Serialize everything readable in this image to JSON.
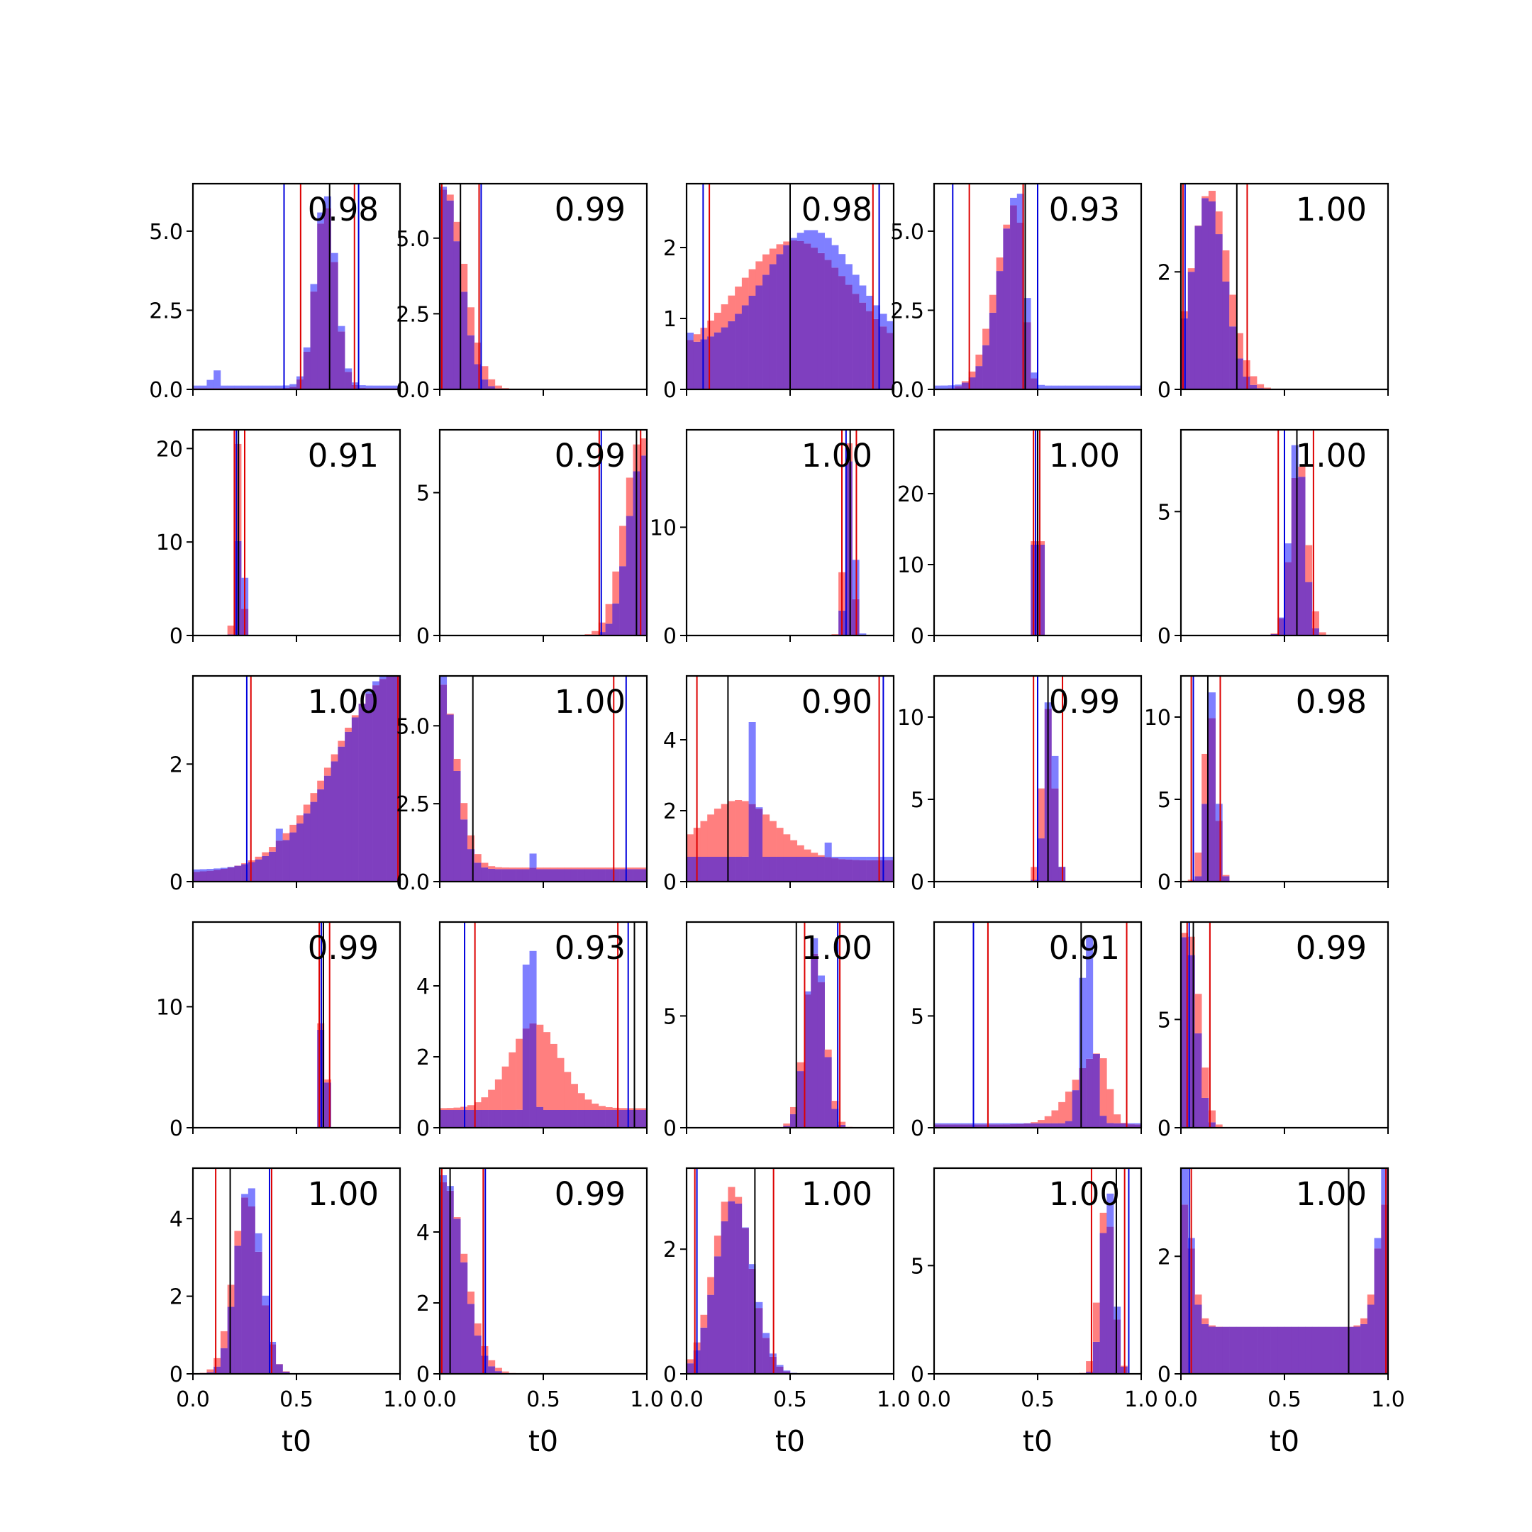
{
  "chart_data": {
    "type": "histogram-grid",
    "rows": 5,
    "cols": 5,
    "xlabel": "t0",
    "xlim": [
      0,
      1
    ],
    "xticks": [
      0.0,
      0.5,
      1.0
    ],
    "xtick_labels": [
      "0.0",
      "0.5",
      "1.0"
    ],
    "colors": {
      "red": "#ff7f7f",
      "blue": "#7f7fff",
      "overlap": "#7f3fbf",
      "red_line": "#dd0000",
      "blue_line": "#0000dd",
      "black_line": "#000000"
    },
    "panels": [
      {
        "score": "0.98",
        "ylim": [
          0,
          6.5
        ],
        "yticks": [
          0,
          2.5,
          5
        ],
        "ytick_labels": [
          "0.0",
          "2.5",
          "5.0"
        ],
        "red": {
          "type": "peak",
          "mu": 0.64,
          "sigma": 0.05,
          "base": 0.04,
          "peak": 5.8
        },
        "blue": {
          "type": "peak",
          "mu": 0.64,
          "sigma": 0.05,
          "base": 0.12,
          "peak": 6.1,
          "spikes": [
            [
              0.08,
              0.3
            ],
            [
              0.12,
              0.6
            ]
          ]
        },
        "vlines": {
          "red": [
            0.52,
            0.78
          ],
          "blue": [
            0.44,
            0.8
          ],
          "black": [
            0.66
          ]
        }
      },
      {
        "score": "0.99",
        "ylim": [
          0,
          6.8
        ],
        "yticks": [
          0,
          2.5,
          5
        ],
        "ytick_labels": [
          "0.0",
          "2.5",
          "5.0"
        ],
        "red": {
          "type": "decay",
          "mu": 0.03,
          "sigma": 0.09,
          "base": 0.0,
          "peak": 6.6
        },
        "blue": {
          "type": "decay",
          "mu": 0.02,
          "sigma": 0.08,
          "base": 0.0,
          "peak": 6.7
        },
        "vlines": {
          "red": [
            0.01,
            0.19
          ],
          "blue": [
            0.2
          ],
          "black": [
            0.1
          ]
        }
      },
      {
        "score": "0.98",
        "ylim": [
          0,
          2.9
        ],
        "yticks": [
          0,
          1,
          2
        ],
        "ytick_labels": [
          "0",
          "1",
          "2"
        ],
        "red": {
          "type": "peak",
          "mu": 0.52,
          "sigma": 0.28,
          "base": 0.35,
          "peak": 1.75
        },
        "blue": {
          "type": "peak",
          "mu": 0.6,
          "sigma": 0.22,
          "base": 0.6,
          "peak": 1.65,
          "spikes": [
            [
              0.03,
              0.8
            ],
            [
              0.97,
              0.85
            ]
          ]
        },
        "vlines": {
          "red": [
            0.11,
            0.9
          ],
          "blue": [
            0.08,
            0.93
          ],
          "black": [
            0.5
          ]
        }
      },
      {
        "score": "0.93",
        "ylim": [
          0,
          6.5
        ],
        "yticks": [
          0,
          2.5,
          5
        ],
        "ytick_labels": [
          "0.0",
          "2.5",
          "5.0"
        ],
        "red": {
          "type": "skewleft",
          "mu": 0.4,
          "sigma": 0.1,
          "base": 0.0,
          "peak": 5.9
        },
        "blue": {
          "type": "skewleft",
          "mu": 0.41,
          "sigma": 0.09,
          "base": 0.12,
          "peak": 6.2
        },
        "vlines": {
          "red": [
            0.17,
            0.43
          ],
          "blue": [
            0.09,
            0.5
          ],
          "black": [
            0.44
          ]
        }
      },
      {
        "score": "1.00",
        "ylim": [
          0,
          3.5
        ],
        "yticks": [
          0,
          2
        ],
        "ytick_labels": [
          "0",
          "2"
        ],
        "red": {
          "type": "peak",
          "mu": 0.14,
          "sigma": 0.09,
          "base": 0.0,
          "peak": 3.4
        },
        "blue": {
          "type": "peak",
          "mu": 0.13,
          "sigma": 0.08,
          "base": 0.0,
          "peak": 3.3
        },
        "vlines": {
          "red": [
            0.01,
            0.32
          ],
          "blue": [
            0.02
          ],
          "black": [
            0.27
          ]
        }
      },
      {
        "score": "0.91",
        "ylim": [
          0,
          22
        ],
        "yticks": [
          0,
          10,
          20
        ],
        "ytick_labels": [
          "0",
          "10",
          "20"
        ],
        "red": {
          "type": "peak",
          "mu": 0.22,
          "sigma": 0.015,
          "base": 0.0,
          "peak": 21
        },
        "blue": {
          "type": "peak",
          "mu": 0.23,
          "sigma": 0.015,
          "base": 0.0,
          "peak": 15
        },
        "vlines": {
          "red": [
            0.2,
            0.25
          ],
          "blue": [
            0.21
          ],
          "black": [
            0.22
          ]
        }
      },
      {
        "score": "0.99",
        "ylim": [
          0,
          7.2
        ],
        "yticks": [
          0,
          5
        ],
        "ytick_labels": [
          "0",
          "5"
        ],
        "red": {
          "type": "growth",
          "mu": 0.97,
          "sigma": 0.08,
          "base": 0.0,
          "peak": 6.9
        },
        "blue": {
          "type": "growth",
          "mu": 0.98,
          "sigma": 0.07,
          "base": 0.0,
          "peak": 6.3
        },
        "vlines": {
          "red": [
            0.77,
            0.97
          ],
          "blue": [
            0.78
          ],
          "black": [
            0.95
          ]
        }
      },
      {
        "score": "1.00",
        "ylim": [
          0,
          19
        ],
        "yticks": [
          0,
          10
        ],
        "ytick_labels": [
          "0",
          "10"
        ],
        "red": {
          "type": "peak",
          "mu": 0.78,
          "sigma": 0.02,
          "base": 0.0,
          "peak": 18
        },
        "blue": {
          "type": "peak",
          "mu": 0.79,
          "sigma": 0.02,
          "base": 0.0,
          "peak": 17
        },
        "vlines": {
          "red": [
            0.75,
            0.82
          ],
          "blue": [
            0.77
          ],
          "black": [
            0.79
          ]
        }
      },
      {
        "score": "1.00",
        "ylim": [
          0,
          29
        ],
        "yticks": [
          0,
          10,
          20
        ],
        "ytick_labels": [
          "0",
          "10",
          "20"
        ],
        "red": {
          "type": "peak",
          "mu": 0.5,
          "sigma": 0.014,
          "base": 0.0,
          "peak": 27
        },
        "blue": {
          "type": "peak",
          "mu": 0.5,
          "sigma": 0.014,
          "base": 0.0,
          "peak": 26
        },
        "vlines": {
          "red": [
            0.48,
            0.51
          ],
          "blue": [
            0.49
          ],
          "black": [
            0.5
          ]
        }
      },
      {
        "score": "1.00",
        "ylim": [
          0,
          8.3
        ],
        "yticks": [
          0,
          5
        ],
        "ytick_labels": [
          "0",
          "5"
        ],
        "red": {
          "type": "peak",
          "mu": 0.57,
          "sigma": 0.04,
          "base": 0.0,
          "peak": 7.2
        },
        "blue": {
          "type": "peak",
          "mu": 0.56,
          "sigma": 0.035,
          "base": 0.0,
          "peak": 8.0
        },
        "vlines": {
          "red": [
            0.47,
            0.64
          ],
          "blue": [
            0.5
          ],
          "black": [
            0.56
          ]
        }
      },
      {
        "score": "1.00",
        "ylim": [
          0,
          3.5
        ],
        "yticks": [
          0,
          2
        ],
        "ytick_labels": [
          "0",
          "2"
        ],
        "red": {
          "type": "growth",
          "mu": 0.99,
          "sigma": 0.3,
          "base": 0.15,
          "peak": 3.4
        },
        "blue": {
          "type": "growth",
          "mu": 1.0,
          "sigma": 0.28,
          "base": 0.2,
          "peak": 3.5,
          "spikes": [
            [
              0.41,
              0.9
            ]
          ]
        },
        "vlines": {
          "red": [
            0.28,
            0.99
          ],
          "blue": [
            0.26
          ],
          "black": []
        }
      },
      {
        "score": "1.00",
        "ylim": [
          0,
          6.6
        ],
        "yticks": [
          0,
          2.5,
          5
        ],
        "ytick_labels": [
          "0.0",
          "2.5",
          "5.0"
        ],
        "red": {
          "type": "decay",
          "mu": 0.0,
          "sigma": 0.08,
          "base": 0.45,
          "peak": 6.0
        },
        "blue": {
          "type": "decay",
          "mu": 0.0,
          "sigma": 0.07,
          "base": 0.4,
          "peak": 6.4,
          "spikes": [
            [
              0.46,
              0.9
            ]
          ]
        },
        "vlines": {
          "red": [
            0.84
          ],
          "blue": [
            0.9
          ],
          "black": [
            0.16
          ]
        }
      },
      {
        "score": "0.90",
        "ylim": [
          0,
          5.8
        ],
        "yticks": [
          0,
          2,
          4
        ],
        "ytick_labels": [
          "0",
          "2",
          "4"
        ],
        "red": {
          "type": "peak",
          "mu": 0.25,
          "sigma": 0.18,
          "base": 0.6,
          "peak": 1.7
        },
        "blue": {
          "type": "peak",
          "mu": 0.33,
          "sigma": 0.012,
          "base": 0.7,
          "peak": 5.6,
          "spikes": [
            [
              0.31,
              4.5
            ],
            [
              0.35,
              1.6
            ],
            [
              0.68,
              1.1
            ]
          ]
        },
        "vlines": {
          "red": [
            0.05,
            0.93
          ],
          "blue": [
            0.95
          ],
          "black": [
            0.2
          ]
        }
      },
      {
        "score": "0.99",
        "ylim": [
          0,
          12.5
        ],
        "yticks": [
          0,
          5,
          10
        ],
        "ytick_labels": [
          "0",
          "5",
          "10"
        ],
        "red": {
          "type": "peak",
          "mu": 0.55,
          "sigma": 0.03,
          "base": 0.0,
          "peak": 10.5
        },
        "blue": {
          "type": "peak",
          "mu": 0.56,
          "sigma": 0.025,
          "base": 0.0,
          "peak": 11.8
        },
        "vlines": {
          "red": [
            0.48,
            0.62
          ],
          "blue": [
            0.5
          ],
          "black": [
            0.55
          ]
        }
      },
      {
        "score": "0.98",
        "ylim": [
          0,
          12.5
        ],
        "yticks": [
          0,
          5,
          10
        ],
        "ytick_labels": [
          "0",
          "5",
          "10"
        ],
        "red": {
          "type": "peak",
          "mu": 0.14,
          "sigma": 0.03,
          "base": 0.0,
          "peak": 10.5
        },
        "blue": {
          "type": "peak",
          "mu": 0.15,
          "sigma": 0.025,
          "base": 0.0,
          "peak": 11.5
        },
        "vlines": {
          "red": [
            0.05,
            0.19
          ],
          "blue": [
            0.06
          ],
          "black": [
            0.13
          ]
        }
      },
      {
        "score": "0.99",
        "ylim": [
          0,
          17
        ],
        "yticks": [
          0,
          10
        ],
        "ytick_labels": [
          "0",
          "10"
        ],
        "red": {
          "type": "peak",
          "mu": 0.63,
          "sigma": 0.012,
          "base": 0.0,
          "peak": 16
        },
        "blue": {
          "type": "peak",
          "mu": 0.63,
          "sigma": 0.012,
          "base": 0.0,
          "peak": 15
        },
        "vlines": {
          "red": [
            0.61,
            0.66
          ],
          "blue": [
            0.62
          ],
          "black": [
            0.63
          ]
        }
      },
      {
        "score": "0.93",
        "ylim": [
          0,
          5.8
        ],
        "yticks": [
          0,
          2,
          4
        ],
        "ytick_labels": [
          "0",
          "2",
          "4"
        ],
        "red": {
          "type": "peak",
          "mu": 0.46,
          "sigma": 0.12,
          "base": 0.55,
          "peak": 2.4
        },
        "blue": {
          "type": "peak",
          "mu": 0.44,
          "sigma": 0.015,
          "base": 0.5,
          "peak": 5.6,
          "spikes": [
            [
              0.42,
              4.6
            ],
            [
              0.46,
              3.2
            ]
          ]
        },
        "vlines": {
          "red": [
            0.17,
            0.86
          ],
          "blue": [
            0.12,
            0.91
          ],
          "black": [
            0.94
          ]
        }
      },
      {
        "score": "1.00",
        "ylim": [
          0,
          9.2
        ],
        "yticks": [
          0,
          5
        ],
        "ytick_labels": [
          "0",
          "5"
        ],
        "red": {
          "type": "peak",
          "mu": 0.62,
          "sigma": 0.05,
          "base": 0.0,
          "peak": 7.8
        },
        "blue": {
          "type": "peak",
          "mu": 0.62,
          "sigma": 0.045,
          "base": 0.0,
          "peak": 8.5
        },
        "vlines": {
          "red": [
            0.57,
            0.74
          ],
          "blue": [
            0.73
          ],
          "black": [
            0.53
          ]
        }
      },
      {
        "score": "0.91",
        "ylim": [
          0,
          9.2
        ],
        "yticks": [
          0,
          5
        ],
        "ytick_labels": [
          "0",
          "5"
        ],
        "red": {
          "type": "skewleft",
          "mu": 0.8,
          "sigma": 0.12,
          "base": 0.15,
          "peak": 3.2
        },
        "blue": {
          "type": "peak",
          "mu": 0.74,
          "sigma": 0.03,
          "base": 0.2,
          "peak": 8.8
        },
        "vlines": {
          "red": [
            0.26,
            0.93
          ],
          "blue": [
            0.19
          ],
          "black": [
            0.71
          ]
        }
      },
      {
        "score": "0.99",
        "ylim": [
          0,
          9.5
        ],
        "yticks": [
          0,
          5
        ],
        "ytick_labels": [
          "0",
          "5"
        ],
        "red": {
          "type": "decay",
          "mu": 0.04,
          "sigma": 0.05,
          "base": 0.0,
          "peak": 9.0
        },
        "blue": {
          "type": "decay",
          "mu": 0.03,
          "sigma": 0.045,
          "base": 0.0,
          "peak": 8.8
        },
        "vlines": {
          "red": [
            0.03,
            0.14
          ],
          "blue": [
            0.04
          ],
          "black": [
            0.06
          ]
        }
      },
      {
        "score": "1.00",
        "ylim": [
          0,
          5.3
        ],
        "yticks": [
          0,
          2,
          4
        ],
        "ytick_labels": [
          "0",
          "2",
          "4"
        ],
        "red": {
          "type": "peak",
          "mu": 0.26,
          "sigma": 0.065,
          "base": 0.0,
          "peak": 4.6
        },
        "blue": {
          "type": "peak",
          "mu": 0.27,
          "sigma": 0.06,
          "base": 0.0,
          "peak": 4.9
        },
        "vlines": {
          "red": [
            0.11,
            0.38
          ],
          "blue": [
            0.37
          ],
          "black": [
            0.18
          ]
        }
      },
      {
        "score": "0.99",
        "ylim": [
          0,
          5.8
        ],
        "yticks": [
          0,
          2,
          4
        ],
        "ytick_labels": [
          "0",
          "2",
          "4"
        ],
        "red": {
          "type": "decay",
          "mu": 0.02,
          "sigma": 0.1,
          "base": 0.0,
          "peak": 5.4
        },
        "blue": {
          "type": "decay",
          "mu": 0.02,
          "sigma": 0.09,
          "base": 0.0,
          "peak": 5.6
        },
        "vlines": {
          "red": [
            0.01,
            0.21
          ],
          "blue": [
            0.22
          ],
          "black": [
            0.05
          ]
        }
      },
      {
        "score": "1.00",
        "ylim": [
          0,
          3.3
        ],
        "yticks": [
          0,
          2
        ],
        "ytick_labels": [
          "0",
          "2"
        ],
        "red": {
          "type": "peak",
          "mu": 0.22,
          "sigma": 0.09,
          "base": 0.0,
          "peak": 3.0
        },
        "blue": {
          "type": "peak",
          "mu": 0.23,
          "sigma": 0.09,
          "base": 0.0,
          "peak": 2.8
        },
        "vlines": {
          "red": [
            0.04,
            0.42
          ],
          "blue": [
            0.05
          ],
          "black": [
            0.33
          ]
        }
      },
      {
        "score": "1.00",
        "ylim": [
          0,
          9.5
        ],
        "yticks": [
          0,
          5
        ],
        "ytick_labels": [
          "0",
          "5"
        ],
        "red": {
          "type": "peak",
          "mu": 0.83,
          "sigma": 0.035,
          "base": 0.0,
          "peak": 8.0
        },
        "blue": {
          "type": "peak",
          "mu": 0.84,
          "sigma": 0.03,
          "base": 0.0,
          "peak": 8.8
        },
        "vlines": {
          "red": [
            0.76,
            0.92
          ],
          "blue": [
            0.94
          ],
          "black": [
            0.88
          ]
        }
      },
      {
        "score": "1.00",
        "ylim": [
          0,
          3.5
        ],
        "yticks": [
          0,
          2
        ],
        "ytick_labels": [
          "0",
          "2"
        ],
        "red": {
          "type": "edges",
          "mu": 0.5,
          "sigma": 0.05,
          "base": 0.8,
          "peak": 2.2
        },
        "blue": {
          "type": "edges",
          "mu": 0.5,
          "sigma": 0.04,
          "base": 0.8,
          "peak": 3.3
        },
        "vlines": {
          "red": [
            0.05,
            0.99
          ],
          "blue": [
            0.04
          ],
          "black": [
            0.81
          ]
        }
      }
    ]
  }
}
